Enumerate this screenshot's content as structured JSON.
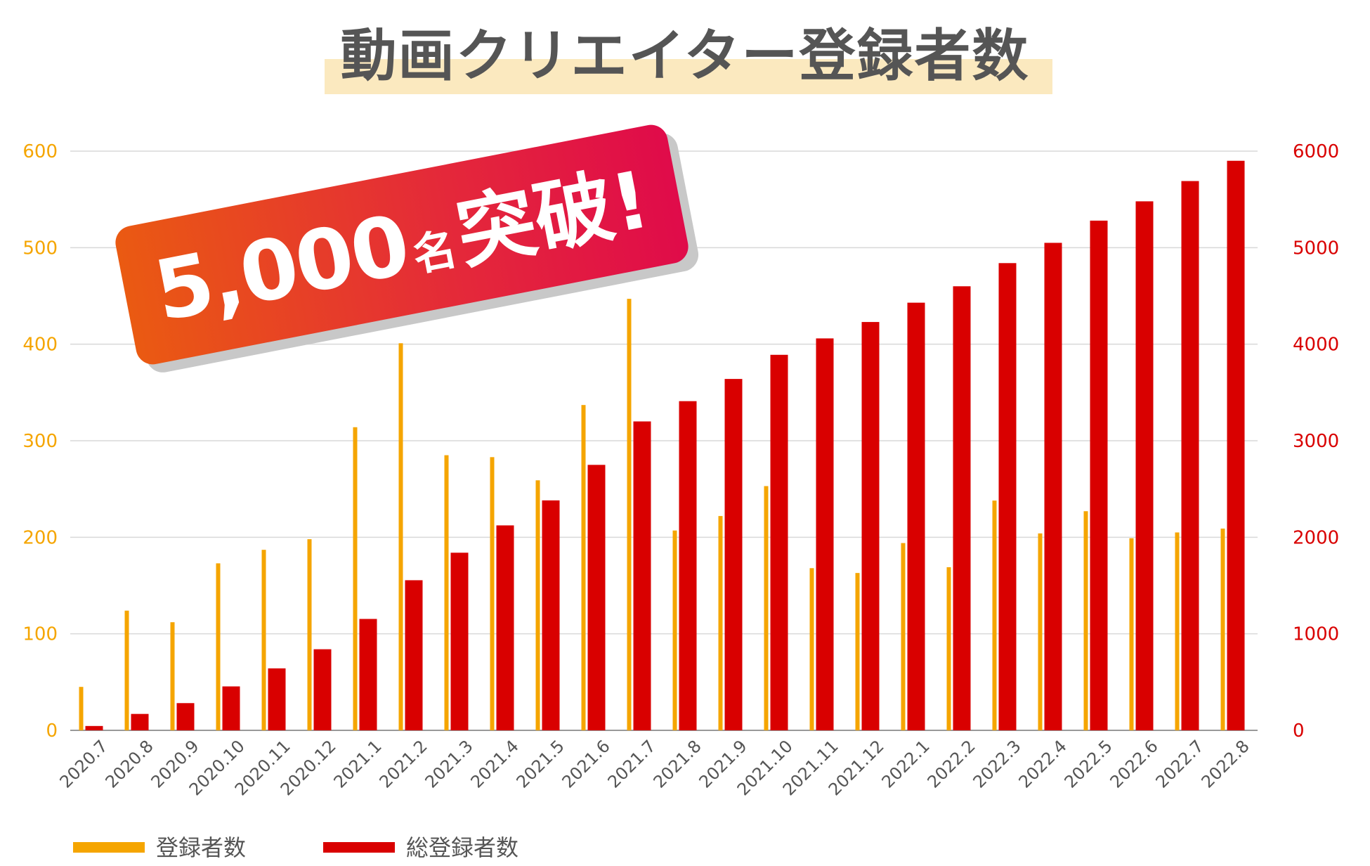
{
  "title": "動画クリエイター登録者数",
  "badge": {
    "number": "5,000",
    "unit": "名",
    "word": "突破!"
  },
  "colors": {
    "monthly": "#f5a500",
    "total": "#d90000",
    "grid": "#d9d9d9"
  },
  "chart_data": {
    "type": "bar",
    "title": "動画クリエイター登録者数",
    "categories": [
      "2020.7",
      "2020.8",
      "2020.9",
      "2020.10",
      "2020.11",
      "2020.12",
      "2021.1",
      "2021.2",
      "2021.3",
      "2021.4",
      "2021.5",
      "2021.6",
      "2021.7",
      "2021.8",
      "2021.9",
      "2021.10",
      "2021.11",
      "2021.12",
      "2022.1",
      "2022.2",
      "2022.3",
      "2022.4",
      "2022.5",
      "2022.6",
      "2022.7",
      "2022.8"
    ],
    "series": [
      {
        "name": "登録者数",
        "axis": "left",
        "color": "#f5a500",
        "values": [
          45,
          124,
          112,
          173,
          187,
          198,
          314,
          401,
          285,
          283,
          259,
          337,
          447,
          207,
          222,
          253,
          168,
          163,
          194,
          169,
          238,
          204,
          227,
          199,
          205,
          209
        ]
      },
      {
        "name": "総登録者数",
        "axis": "right",
        "color": "#d90000",
        "values": [
          45,
          170,
          282,
          455,
          642,
          840,
          1154,
          1555,
          1840,
          2123,
          2382,
          2750,
          3200,
          3410,
          3640,
          3890,
          4060,
          4230,
          4430,
          4600,
          4840,
          5050,
          5280,
          5480,
          5690,
          5900
        ]
      }
    ],
    "y_left": {
      "min": 0,
      "max": 600,
      "ticks": [
        0,
        100,
        200,
        300,
        400,
        500,
        600
      ]
    },
    "y_right": {
      "min": 0,
      "max": 6000,
      "ticks": [
        0,
        1000,
        2000,
        3000,
        4000,
        5000,
        6000
      ]
    },
    "grid": true,
    "legend": "bottom-left"
  }
}
